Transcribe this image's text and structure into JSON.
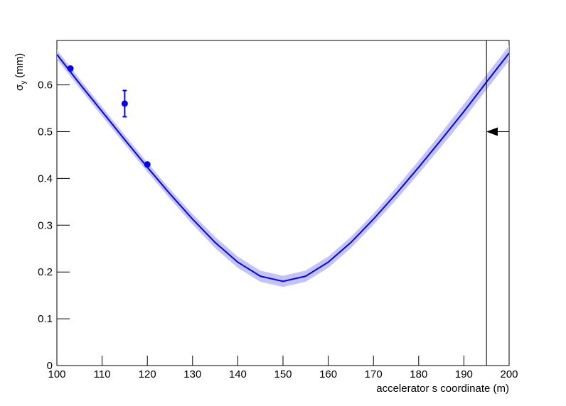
{
  "chart_data": {
    "type": "fit",
    "xlabel": "accelerator s coordinate (m)",
    "ylabel": {
      "symbol": "σ",
      "subscript": "y",
      "unit": "(mm)"
    },
    "xlim": [
      100,
      200
    ],
    "ylim": [
      0,
      0.695
    ],
    "xticks": [
      100,
      110,
      120,
      130,
      140,
      150,
      160,
      170,
      180,
      190,
      200
    ],
    "yticks": [
      0,
      0.1,
      0.2,
      0.3,
      0.4,
      0.5,
      0.6
    ],
    "fit": {
      "color": "#0000ff",
      "band_color": "#c4c4f4",
      "x": [
        100,
        105,
        110,
        115,
        120,
        125,
        130,
        135,
        140,
        145,
        150,
        155,
        160,
        165,
        170,
        175,
        180,
        185,
        190,
        195,
        200
      ],
      "values": [
        0.665,
        0.603,
        0.543,
        0.483,
        0.424,
        0.367,
        0.313,
        0.263,
        0.221,
        0.191,
        0.18,
        0.191,
        0.221,
        0.263,
        0.313,
        0.367,
        0.424,
        0.483,
        0.543,
        0.606,
        0.668
      ],
      "lower": [
        0.655,
        0.593,
        0.533,
        0.473,
        0.414,
        0.357,
        0.302,
        0.251,
        0.209,
        0.179,
        0.168,
        0.179,
        0.209,
        0.251,
        0.301,
        0.354,
        0.41,
        0.468,
        0.527,
        0.59,
        0.652
      ],
      "upper": [
        0.675,
        0.613,
        0.553,
        0.493,
        0.434,
        0.377,
        0.324,
        0.275,
        0.233,
        0.203,
        0.192,
        0.203,
        0.233,
        0.275,
        0.325,
        0.38,
        0.438,
        0.498,
        0.559,
        0.622,
        0.684
      ]
    },
    "points": {
      "color": "#0000ff",
      "x": [
        103,
        115,
        120
      ],
      "values": [
        0.635,
        0.56,
        0.43
      ],
      "errors": [
        0.004,
        0.028,
        0.004
      ]
    },
    "marker_line": {
      "x": 195,
      "color": "#000000"
    },
    "arrow": {
      "y": 0.5,
      "color": "#000000"
    }
  }
}
